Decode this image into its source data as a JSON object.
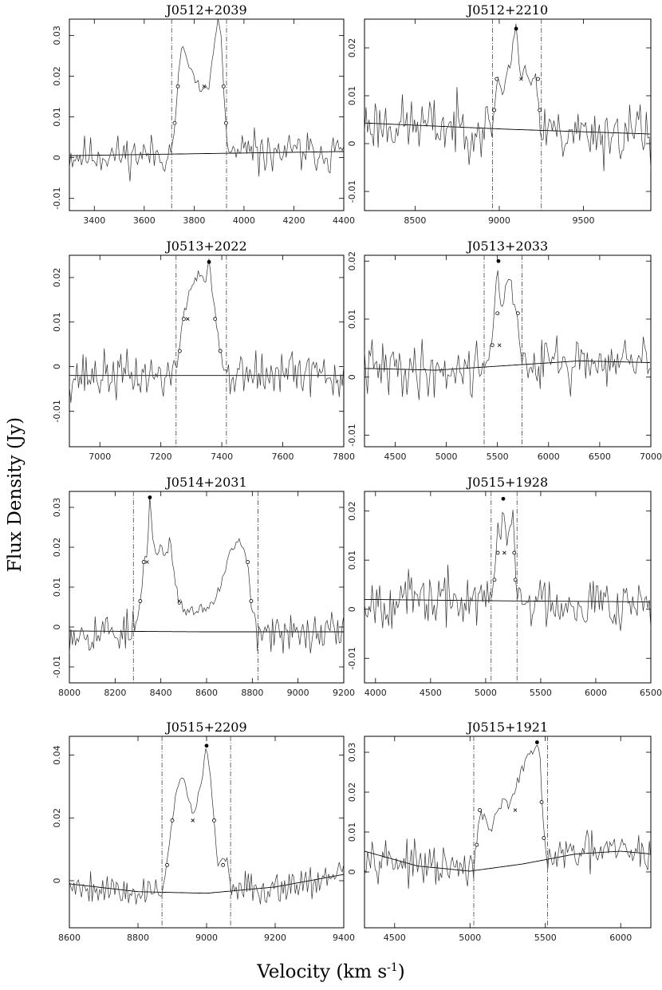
{
  "figure": {
    "ylabel": "Flux Density (Jy)",
    "xlabel_prefix": "Velocity (km s",
    "xlabel_sup": "-1",
    "xlabel_suffix": ")"
  },
  "chart_data": [
    {
      "type": "line",
      "title": "J0512+2039",
      "xlim": [
        3300,
        4400
      ],
      "ylim": [
        -0.013,
        0.034
      ],
      "xticks": [
        3400,
        3600,
        3800,
        4000,
        4200,
        4400
      ],
      "xtick_labels": [
        "3400",
        "3600",
        "3800",
        "4000",
        "4200",
        "4400"
      ],
      "yticks": [
        -0.01,
        0,
        0.01,
        0.02,
        0.03
      ],
      "ytick_labels": [
        "-0.01",
        "0",
        "0.01",
        "0.02",
        "0.03"
      ],
      "profile": [
        [
          3710,
          0.001
        ],
        [
          3722,
          0.008
        ],
        [
          3735,
          0.019
        ],
        [
          3752,
          0.028
        ],
        [
          3768,
          0.024
        ],
        [
          3790,
          0.021
        ],
        [
          3815,
          0.018
        ],
        [
          3840,
          0.016
        ],
        [
          3860,
          0.018
        ],
        [
          3878,
          0.025
        ],
        [
          3896,
          0.035
        ],
        [
          3908,
          0.03
        ],
        [
          3918,
          0.017
        ],
        [
          3928,
          0.008
        ],
        [
          3935,
          0.001
        ]
      ],
      "markers": [
        [
          3722,
          0.0085,
          "o"
        ],
        [
          3735,
          0.0175,
          "o"
        ],
        [
          3840,
          0.0175,
          "x"
        ],
        [
          3896,
          0.035,
          "filled"
        ],
        [
          3918,
          0.0175,
          "o"
        ],
        [
          3928,
          0.0085,
          "o"
        ]
      ],
      "vlines": [
        3710,
        3930
      ],
      "baseline": [
        [
          3300,
          0.0005
        ],
        [
          3850,
          0.001
        ],
        [
          4400,
          0.0015
        ]
      ],
      "noise": 0.004,
      "seed": 11
    },
    {
      "type": "line",
      "title": "J0512+2210",
      "xlim": [
        8200,
        9900
      ],
      "ylim": [
        -0.014,
        0.026
      ],
      "xticks": [
        8500,
        9000,
        9500
      ],
      "xtick_labels": [
        "8500",
        "9000",
        "9500"
      ],
      "yticks": [
        -0.01,
        0,
        0.01,
        0.02
      ],
      "ytick_labels": [
        "-0.01",
        "0",
        "0.01",
        "0.02"
      ],
      "profile": [
        [
          8960,
          0.003
        ],
        [
          8985,
          0.014
        ],
        [
          9010,
          0.011
        ],
        [
          9040,
          0.013
        ],
        [
          9070,
          0.018
        ],
        [
          9100,
          0.024
        ],
        [
          9130,
          0.014
        ],
        [
          9160,
          0.016
        ],
        [
          9190,
          0.012
        ],
        [
          9220,
          0.014
        ],
        [
          9245,
          0.003
        ]
      ],
      "markers": [
        [
          8970,
          0.007,
          "o"
        ],
        [
          8985,
          0.0135,
          "o"
        ],
        [
          9100,
          0.024,
          "filled"
        ],
        [
          9130,
          0.0135,
          "x"
        ],
        [
          9230,
          0.0135,
          "o"
        ],
        [
          9240,
          0.007,
          "o"
        ]
      ],
      "vlines": [
        8960,
        9250
      ],
      "baseline": [
        [
          8200,
          0.0043
        ],
        [
          9050,
          0.003
        ],
        [
          9900,
          0.002
        ]
      ],
      "noise": 0.005,
      "seed": 23
    },
    {
      "type": "line",
      "title": "J0513+2022",
      "xlim": [
        6900,
        7800
      ],
      "ylim": [
        -0.018,
        0.025
      ],
      "xticks": [
        7000,
        7200,
        7400,
        7600,
        7800
      ],
      "xtick_labels": [
        "7000",
        "7200",
        "7400",
        "7600",
        "7800"
      ],
      "yticks": [
        -0.01,
        0,
        0.01,
        0.02
      ],
      "ytick_labels": [
        "-0.01",
        "0",
        "0.01",
        "0.02"
      ],
      "profile": [
        [
          7250,
          -0.001
        ],
        [
          7262,
          0.005
        ],
        [
          7275,
          0.011
        ],
        [
          7292,
          0.016
        ],
        [
          7310,
          0.02
        ],
        [
          7330,
          0.021
        ],
        [
          7345,
          0.019
        ],
        [
          7358,
          0.0235
        ],
        [
          7370,
          0.016
        ],
        [
          7382,
          0.01
        ],
        [
          7395,
          0.0035
        ],
        [
          7410,
          -0.001
        ]
      ],
      "markers": [
        [
          7262,
          0.0035,
          "o"
        ],
        [
          7275,
          0.0107,
          "o"
        ],
        [
          7288,
          0.0107,
          "x"
        ],
        [
          7358,
          0.0235,
          "filled"
        ],
        [
          7378,
          0.0107,
          "o"
        ],
        [
          7395,
          0.0035,
          "o"
        ]
      ],
      "vlines": [
        7250,
        7415
      ],
      "baseline": [
        [
          6900,
          -0.002
        ],
        [
          7350,
          -0.002
        ],
        [
          7800,
          -0.002
        ]
      ],
      "noise": 0.0045,
      "seed": 37
    },
    {
      "type": "line",
      "title": "J0513+2033",
      "xlim": [
        4200,
        7000
      ],
      "ylim": [
        -0.012,
        0.021
      ],
      "xticks": [
        4500,
        5000,
        5500,
        6000,
        6500,
        7000
      ],
      "xtick_labels": [
        "4500",
        "5000",
        "5500",
        "6000",
        "6500",
        "7000"
      ],
      "yticks": [
        -0.01,
        0,
        0.01,
        0.02
      ],
      "ytick_labels": [
        "-0.01",
        "0",
        "0.01",
        "0.02"
      ],
      "profile": [
        [
          5370,
          0.002
        ],
        [
          5440,
          0.005
        ],
        [
          5500,
          0.02
        ],
        [
          5540,
          0.01
        ],
        [
          5580,
          0.016
        ],
        [
          5620,
          0.018
        ],
        [
          5660,
          0.012
        ],
        [
          5700,
          0.009
        ],
        [
          5740,
          0.003
        ]
      ],
      "markers": [
        [
          5450,
          0.0055,
          "o"
        ],
        [
          5500,
          0.011,
          "o"
        ],
        [
          5510,
          0.02,
          "filled"
        ],
        [
          5700,
          0.011,
          "o"
        ],
        [
          5520,
          0.0055,
          "x"
        ]
      ],
      "vlines": [
        5370,
        5740
      ],
      "baseline": [
        [
          4200,
          0.0015
        ],
        [
          4900,
          0.0012
        ],
        [
          5600,
          0.002
        ],
        [
          6300,
          0.0028
        ],
        [
          7000,
          0.0025
        ]
      ],
      "noise": 0.004,
      "seed": 41
    },
    {
      "type": "line",
      "title": "J0514+2031",
      "xlim": [
        8000,
        9200
      ],
      "ylim": [
        -0.014,
        0.034
      ],
      "xticks": [
        8000,
        8200,
        8400,
        8600,
        8800,
        9000,
        9200
      ],
      "xtick_labels": [
        "8000",
        "8200",
        "8400",
        "8600",
        "8800",
        "9000",
        "9200"
      ],
      "yticks": [
        -0.01,
        0,
        0.01,
        0.02,
        0.03
      ],
      "ytick_labels": [
        "-0.01",
        "0",
        "0.01",
        "0.02",
        "0.03"
      ],
      "profile": [
        [
          8290,
          0.0
        ],
        [
          8310,
          0.006
        ],
        [
          8325,
          0.016
        ],
        [
          8340,
          0.018
        ],
        [
          8352,
          0.0325
        ],
        [
          8365,
          0.022
        ],
        [
          8385,
          0.017
        ],
        [
          8400,
          0.021
        ],
        [
          8420,
          0.017
        ],
        [
          8440,
          0.022
        ],
        [
          8460,
          0.012
        ],
        [
          8480,
          0.006
        ],
        [
          8520,
          0.003
        ],
        [
          8560,
          0.005
        ],
        [
          8600,
          0.004
        ],
        [
          8640,
          0.008
        ],
        [
          8680,
          0.013
        ],
        [
          8710,
          0.02
        ],
        [
          8735,
          0.022
        ],
        [
          8760,
          0.019
        ],
        [
          8780,
          0.015
        ],
        [
          8795,
          0.006
        ],
        [
          8815,
          0.001
        ]
      ],
      "markers": [
        [
          8310,
          0.0065,
          "o"
        ],
        [
          8325,
          0.0163,
          "o"
        ],
        [
          8340,
          0.0163,
          "x"
        ],
        [
          8352,
          0.0325,
          "filled"
        ],
        [
          8480,
          0.0065,
          "x"
        ],
        [
          8780,
          0.0163,
          "o"
        ],
        [
          8795,
          0.0065,
          "o"
        ]
      ],
      "vlines": [
        8280,
        8825
      ],
      "baseline": [
        [
          8000,
          -0.001
        ],
        [
          8600,
          -0.0012
        ],
        [
          9200,
          -0.0012
        ]
      ],
      "noise": 0.0045,
      "seed": 53
    },
    {
      "type": "line",
      "title": "J0515+1928",
      "xlim": [
        3900,
        6500
      ],
      "ylim": [
        -0.015,
        0.024
      ],
      "xticks": [
        4000,
        4500,
        5000,
        5500,
        6000,
        6500
      ],
      "xtick_labels": [
        "4000",
        "4500",
        "5000",
        "5500",
        "6000",
        "6500"
      ],
      "yticks": [
        -0.01,
        0,
        0.01,
        0.02
      ],
      "ytick_labels": [
        "-0.01",
        "0",
        "0.01",
        "0.02"
      ],
      "profile": [
        [
          5050,
          0.002
        ],
        [
          5080,
          0.006
        ],
        [
          5110,
          0.018
        ],
        [
          5140,
          0.014
        ],
        [
          5160,
          0.0225
        ],
        [
          5190,
          0.013
        ],
        [
          5220,
          0.016
        ],
        [
          5250,
          0.02
        ],
        [
          5275,
          0.006
        ],
        [
          5290,
          0.002
        ]
      ],
      "markers": [
        [
          5080,
          0.006,
          "o"
        ],
        [
          5110,
          0.0115,
          "o"
        ],
        [
          5160,
          0.0225,
          "filled"
        ],
        [
          5170,
          0.0115,
          "x"
        ],
        [
          5260,
          0.0115,
          "o"
        ],
        [
          5270,
          0.006,
          "o"
        ]
      ],
      "vlines": [
        5050,
        5285
      ],
      "baseline": [
        [
          3900,
          0.002
        ],
        [
          5200,
          0.0017
        ],
        [
          6500,
          0.0015
        ]
      ],
      "noise": 0.0045,
      "seed": 67
    },
    {
      "type": "line",
      "title": "J0515+2209",
      "xlim": [
        8600,
        9400
      ],
      "ylim": [
        -0.015,
        0.046
      ],
      "xticks": [
        8600,
        8800,
        9000,
        9200,
        9400
      ],
      "xtick_labels": [
        "8600",
        "8800",
        "9000",
        "9200",
        "9400"
      ],
      "yticks": [
        0,
        0.02,
        0.04
      ],
      "ytick_labels": [
        "0",
        "0.02",
        "0.04"
      ],
      "profile": [
        [
          8870,
          -0.002
        ],
        [
          8885,
          0.005
        ],
        [
          8900,
          0.02
        ],
        [
          8915,
          0.03
        ],
        [
          8930,
          0.034
        ],
        [
          8945,
          0.028
        ],
        [
          8960,
          0.02
        ],
        [
          8975,
          0.027
        ],
        [
          8988,
          0.034
        ],
        [
          9000,
          0.043
        ],
        [
          9012,
          0.032
        ],
        [
          9022,
          0.02
        ],
        [
          9032,
          0.005
        ],
        [
          9045,
          0.006
        ],
        [
          9060,
          0.006
        ],
        [
          9072,
          -0.004
        ]
      ],
      "markers": [
        [
          8885,
          0.005,
          "o"
        ],
        [
          8900,
          0.0192,
          "o"
        ],
        [
          8960,
          0.0192,
          "x"
        ],
        [
          9000,
          0.043,
          "filled"
        ],
        [
          9022,
          0.0192,
          "o"
        ],
        [
          9048,
          0.005,
          "o"
        ]
      ],
      "vlines": [
        8870,
        9070
      ],
      "baseline": [
        [
          8600,
          -0.001
        ],
        [
          8800,
          -0.0035
        ],
        [
          9000,
          -0.004
        ],
        [
          9200,
          -0.002
        ],
        [
          9400,
          0.002
        ]
      ],
      "noise": 0.0045,
      "seed": 79
    },
    {
      "type": "line",
      "title": "J0515+1921",
      "xlim": [
        4300,
        6200
      ],
      "ylim": [
        -0.014,
        0.034
      ],
      "xticks": [
        4500,
        5000,
        5500,
        6000
      ],
      "xtick_labels": [
        "4500",
        "5000",
        "5500",
        "6000"
      ],
      "yticks": [
        0,
        0.01,
        0.02,
        0.03
      ],
      "ytick_labels": [
        "0",
        "0.01",
        "0.02",
        "0.03"
      ],
      "profile": [
        [
          5025,
          0.002
        ],
        [
          5045,
          0.007
        ],
        [
          5065,
          0.015
        ],
        [
          5100,
          0.013
        ],
        [
          5140,
          0.011
        ],
        [
          5180,
          0.015
        ],
        [
          5220,
          0.018
        ],
        [
          5260,
          0.016
        ],
        [
          5300,
          0.021
        ],
        [
          5340,
          0.025
        ],
        [
          5380,
          0.028
        ],
        [
          5420,
          0.031
        ],
        [
          5445,
          0.0325
        ],
        [
          5465,
          0.029
        ],
        [
          5480,
          0.017
        ],
        [
          5495,
          0.0085
        ],
        [
          5510,
          0.002
        ]
      ],
      "markers": [
        [
          5045,
          0.0068,
          "o"
        ],
        [
          5065,
          0.0155,
          "o"
        ],
        [
          5300,
          0.0155,
          "x"
        ],
        [
          5445,
          0.0325,
          "filled"
        ],
        [
          5475,
          0.0175,
          "o"
        ],
        [
          5490,
          0.0085,
          "o"
        ]
      ],
      "vlines": [
        5025,
        5515
      ],
      "baseline": [
        [
          4300,
          0.0052
        ],
        [
          4650,
          0.0015
        ],
        [
          5000,
          0.0002
        ],
        [
          5350,
          0.002
        ],
        [
          5700,
          0.0045
        ],
        [
          6000,
          0.0052
        ],
        [
          6200,
          0.0045
        ]
      ],
      "noise": 0.0042,
      "seed": 97
    }
  ]
}
